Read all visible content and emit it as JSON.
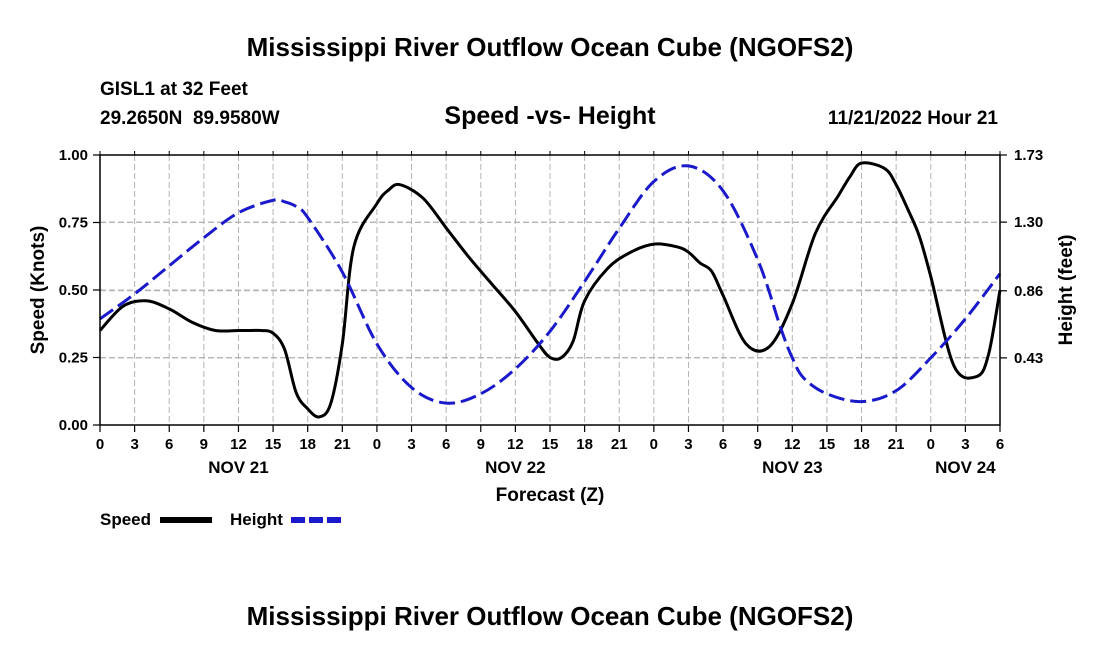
{
  "title": "Mississippi River Outflow Ocean Cube (NGOFS2)",
  "footer_title": "Mississippi River Outflow Ocean Cube (NGOFS2)",
  "station_line": "GISL1 at 32 Feet",
  "coords_line": "29.2650N  89.9580W",
  "timestamp": "11/21/2022 Hour 21",
  "colors": {
    "speed": "#000000",
    "height": "#1a1acc",
    "grid": "#b4b4b4"
  },
  "chart_data": {
    "type": "line",
    "title": "Speed -vs- Height",
    "xlabel": "Forecast (Z)",
    "ylabel_left": "Speed (Knots)",
    "ylabel_right": "Height (feet)",
    "x_unit": "hours from NOV 21 00Z",
    "xlim": [
      0,
      78
    ],
    "ylim_left": [
      0,
      1
    ],
    "ylim_right": [
      0,
      1.73
    ],
    "x_tick_values": [
      0,
      3,
      6,
      9,
      12,
      15,
      18,
      21,
      24,
      27,
      30,
      33,
      36,
      39,
      42,
      45,
      48,
      51,
      54,
      57,
      60,
      63,
      66,
      69,
      72,
      75,
      78
    ],
    "x_tick_labels": [
      "0",
      "3",
      "6",
      "9",
      "12",
      "15",
      "18",
      "21",
      "0",
      "3",
      "6",
      "9",
      "12",
      "15",
      "18",
      "21",
      "0",
      "3",
      "6",
      "9",
      "12",
      "15",
      "18",
      "21",
      "0",
      "3",
      "6"
    ],
    "y_left_ticks": [
      0,
      0.25,
      0.5,
      0.75,
      1.0
    ],
    "y_left_tick_labels": [
      "0.00",
      "0.25",
      "0.50",
      "0.75",
      "1.00"
    ],
    "y_right_ticks": [
      0.43,
      0.86,
      1.3,
      1.73
    ],
    "y_right_tick_labels": [
      "0.43",
      "0.86",
      "1.30",
      "1.73"
    ],
    "day_labels": [
      {
        "hour": 12,
        "label": "NOV 21"
      },
      {
        "hour": 36,
        "label": "NOV 22"
      },
      {
        "hour": 60,
        "label": "NOV 23"
      },
      {
        "hour": 75,
        "label": "NOV 24"
      }
    ],
    "grid": true,
    "legend": {
      "position": "bottom-left",
      "entries": [
        "Speed",
        "Height"
      ]
    },
    "series": [
      {
        "name": "Speed",
        "axis": "left",
        "style": "solid",
        "x": [
          0,
          2,
          4,
          6,
          8,
          10,
          12,
          13,
          14,
          15,
          16,
          17,
          18,
          19,
          20,
          21,
          22,
          24,
          25,
          26,
          28,
          30,
          32,
          34,
          36,
          38,
          39,
          40,
          41,
          42,
          44,
          46,
          48,
          50,
          51,
          52,
          53,
          54,
          56,
          58,
          60,
          62,
          64,
          65,
          66,
          68,
          69,
          70,
          71,
          72,
          74,
          76,
          77,
          78
        ],
        "y": [
          0.35,
          0.44,
          0.46,
          0.43,
          0.38,
          0.35,
          0.35,
          0.35,
          0.35,
          0.34,
          0.28,
          0.12,
          0.06,
          0.03,
          0.08,
          0.3,
          0.66,
          0.82,
          0.87,
          0.89,
          0.84,
          0.73,
          0.62,
          0.52,
          0.42,
          0.3,
          0.25,
          0.25,
          0.31,
          0.46,
          0.58,
          0.64,
          0.67,
          0.66,
          0.64,
          0.6,
          0.57,
          0.48,
          0.3,
          0.29,
          0.45,
          0.71,
          0.85,
          0.92,
          0.97,
          0.95,
          0.89,
          0.8,
          0.7,
          0.55,
          0.22,
          0.18,
          0.26,
          0.5
        ]
      },
      {
        "name": "Height",
        "axis": "right",
        "style": "dashed",
        "x": [
          0,
          3,
          6,
          9,
          12,
          15,
          16,
          17,
          18,
          21,
          24,
          27,
          30,
          33,
          36,
          39,
          42,
          45,
          48,
          51,
          54,
          57,
          59,
          60,
          61,
          63,
          66,
          69,
          72,
          75,
          78
        ],
        "y": [
          0.68,
          0.84,
          1.02,
          1.2,
          1.36,
          1.44,
          1.43,
          1.4,
          1.33,
          0.98,
          0.52,
          0.24,
          0.14,
          0.2,
          0.36,
          0.6,
          0.92,
          1.26,
          1.56,
          1.66,
          1.5,
          1.06,
          0.62,
          0.43,
          0.3,
          0.2,
          0.15,
          0.22,
          0.43,
          0.68,
          0.97
        ]
      }
    ]
  }
}
